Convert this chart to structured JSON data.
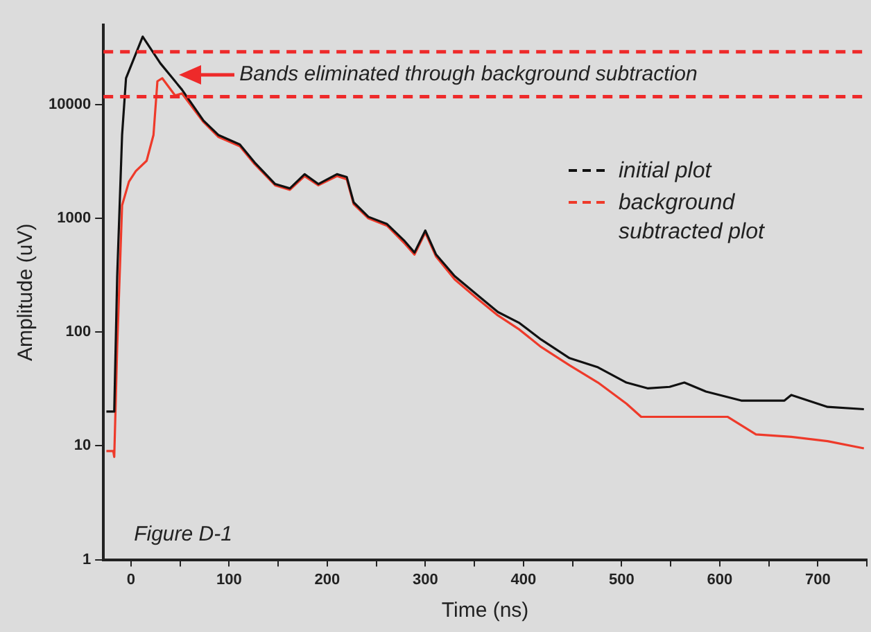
{
  "chart_data": {
    "type": "line",
    "xlabel": "Time (ns)",
    "ylabel": "Amplitude (uV)",
    "log": "y",
    "xlim": [
      -28,
      750
    ],
    "ylim": [
      1,
      50000
    ],
    "xticks": [
      0,
      {
        "value": 50,
        "label": null
      },
      100,
      {
        "value": 150,
        "label": null
      },
      200,
      {
        "value": 250,
        "label": null
      },
      300,
      {
        "value": 350,
        "label": null
      },
      400,
      {
        "value": 450,
        "label": null
      },
      500,
      {
        "value": 550,
        "label": null
      },
      600,
      {
        "value": 650,
        "label": null
      },
      700,
      {
        "value": 750,
        "label": null
      }
    ],
    "yticks": [
      1,
      10,
      100,
      1000,
      10000
    ],
    "grid": false,
    "legend": "right",
    "marker": "none",
    "line_style": "solid",
    "ref_lines": [
      {
        "axis": "y",
        "value": 29000,
        "color": "#ee2a2a",
        "line_style": "dashed"
      },
      {
        "axis": "y",
        "value": 11700,
        "color": "#ee2a2a",
        "line_style": "dashed"
      }
    ],
    "annotations": [
      "Bands eliminated through background subtraction",
      "Figure D-1"
    ],
    "series": [
      {
        "name": "initial plot",
        "color": "#111111",
        "x": [
          -25,
          -17,
          -14,
          -9,
          -5,
          12,
          30,
          52,
          74,
          89,
          111,
          126,
          147,
          162,
          177,
          191,
          210,
          220,
          227,
          242,
          261,
          279,
          289,
          300,
          311,
          330,
          352,
          374,
          396,
          418,
          447,
          476,
          505,
          527,
          549,
          564,
          586,
          622,
          666,
          673,
          710,
          747
        ],
        "values": [
          20,
          20,
          310,
          5400,
          17000,
          39500,
          23000,
          13500,
          7200,
          5400,
          4450,
          3100,
          2000,
          1830,
          2440,
          2000,
          2440,
          2300,
          1380,
          1030,
          890,
          630,
          500,
          780,
          480,
          310,
          215,
          150,
          120,
          86,
          59,
          49,
          36,
          32,
          33,
          36,
          30,
          25,
          25,
          28,
          22,
          21
        ]
      },
      {
        "name": "background subtracted plot",
        "color": "#ee3a2a",
        "x": [
          -25,
          -18,
          -17,
          -14,
          -9,
          -2,
          5,
          16,
          23,
          27,
          32,
          45,
          52,
          74,
          89,
          111,
          126,
          147,
          162,
          177,
          191,
          210,
          220,
          227,
          242,
          261,
          279,
          289,
          300,
          311,
          330,
          352,
          374,
          396,
          418,
          447,
          476,
          505,
          520,
          560,
          608,
          637,
          673,
          710,
          747
        ],
        "values": [
          9,
          9,
          8,
          74,
          1300,
          2100,
          2600,
          3200,
          5400,
          16000,
          17000,
          12000,
          12500,
          7000,
          5200,
          4300,
          3000,
          1950,
          1780,
          2350,
          1950,
          2350,
          2200,
          1330,
          1000,
          860,
          600,
          480,
          750,
          460,
          290,
          200,
          140,
          105,
          74,
          51,
          36,
          23.5,
          18,
          18,
          18,
          12.6,
          12,
          11,
          9.5
        ]
      }
    ]
  }
}
